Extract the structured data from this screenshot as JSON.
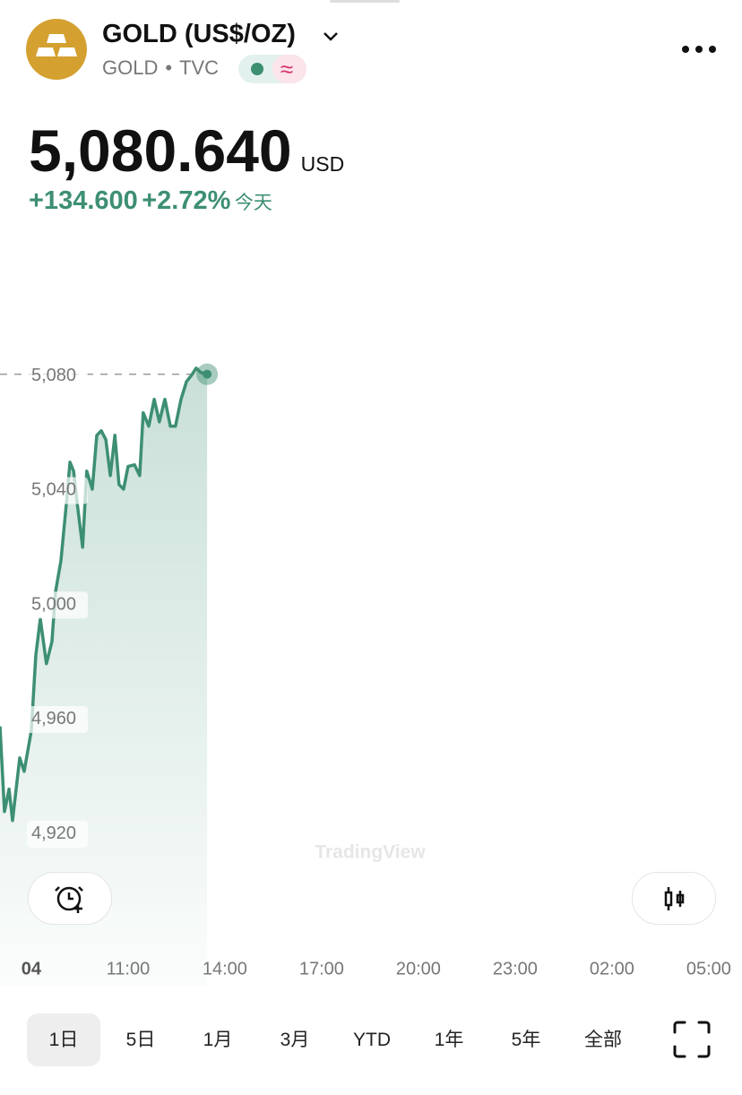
{
  "header": {
    "title": "GOLD (US$/OZ)",
    "symbol": "GOLD",
    "exchange": "TVC"
  },
  "quote": {
    "price": "5,080.640",
    "currency": "USD",
    "change": "+134.600",
    "change_percent": "+2.72%",
    "period": "今天"
  },
  "chart_data": {
    "type": "line",
    "color": "#3d8f72",
    "x": [
      7.03,
      7.17,
      7.31,
      7.42,
      7.64,
      7.78,
      8.0,
      8.14,
      8.28,
      8.47,
      8.64,
      8.75,
      8.92,
      9.09,
      9.2,
      9.31,
      9.42,
      9.59,
      9.72,
      9.89,
      10.03,
      10.17,
      10.31,
      10.45,
      10.59,
      10.72,
      10.86,
      11.0,
      11.2,
      11.36,
      11.47,
      11.64,
      11.81,
      11.97,
      12.14,
      12.31,
      12.47,
      12.64,
      12.81,
      12.97,
      13.11,
      13.25,
      13.45
    ],
    "values": [
      4957.6,
      4927.8,
      4935.7,
      4924.7,
      4946.6,
      4941.9,
      4956,
      4982.6,
      4995.2,
      4979.5,
      4987.3,
      5004.5,
      5015.5,
      5035.9,
      5049.9,
      5046.8,
      5035.9,
      5020.2,
      5046.8,
      5040.5,
      5059.3,
      5060.9,
      5057.8,
      5045.2,
      5059.3,
      5042.1,
      5040.5,
      5048.4,
      5049,
      5045.2,
      5067.2,
      5062.5,
      5071.9,
      5064,
      5071.9,
      5062.5,
      5062.5,
      5071.9,
      5078.1,
      5080.3,
      5082.8,
      5081.3,
      5080.64
    ],
    "xlim": [
      7.03,
      30.03
    ],
    "ylim": [
      4867,
      5130
    ],
    "xticks": [
      {
        "value": 8,
        "label": "04"
      },
      {
        "value": 11,
        "label": "11:00"
      },
      {
        "value": 14,
        "label": "14:00"
      },
      {
        "value": 17,
        "label": "17:00"
      },
      {
        "value": 20,
        "label": "20:00"
      },
      {
        "value": 23,
        "label": "23:00"
      },
      {
        "value": 26,
        "label": "02:00"
      },
      {
        "value": 29,
        "label": "05:00"
      }
    ],
    "yticks": [
      {
        "value": 4920,
        "label": "4,920"
      },
      {
        "value": 4960,
        "label": "4,960"
      },
      {
        "value": 5000,
        "label": "5,000"
      },
      {
        "value": 5040,
        "label": "5,040"
      },
      {
        "value": 5080,
        "label": "5,080"
      }
    ]
  },
  "watermark": "TradingView",
  "range_tabs": [
    "1日",
    "5日",
    "1月",
    "3月",
    "YTD",
    "1年",
    "5年",
    "全部"
  ],
  "active_tab": 0
}
